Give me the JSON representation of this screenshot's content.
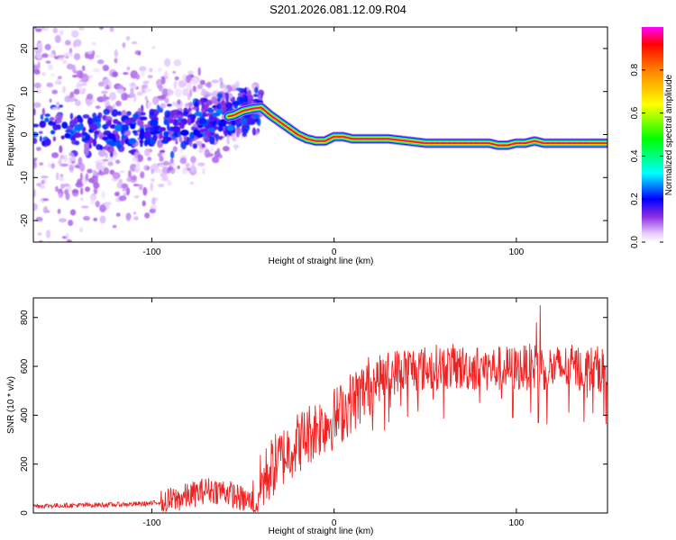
{
  "title": "S201.2026.081.12.09.R04",
  "chart_data": [
    {
      "type": "heatmap",
      "name": "spectrogram",
      "xlabel": "Height of straight line (km)",
      "ylabel": "Frequency (Hz)",
      "xlim": [
        -165,
        150
      ],
      "ylim": [
        -25,
        25
      ],
      "xticks": [
        -100,
        0,
        100
      ],
      "yticks": [
        -20,
        -10,
        0,
        10,
        20
      ],
      "colorbar": {
        "label": "Normalized spectral amplitude",
        "range": [
          0,
          1
        ],
        "ticks": [
          0.0,
          0.2,
          0.4,
          0.6,
          0.8
        ],
        "tick_labels": [
          "0.0",
          "0.2",
          "0.4",
          "0.6",
          "0.8"
        ],
        "stops": [
          {
            "v": 0.0,
            "color": "#ffffff"
          },
          {
            "v": 0.04,
            "color": "#e6ccff"
          },
          {
            "v": 0.12,
            "color": "#8a2be2"
          },
          {
            "v": 0.2,
            "color": "#0000ff"
          },
          {
            "v": 0.32,
            "color": "#00ffff"
          },
          {
            "v": 0.48,
            "color": "#00ff00"
          },
          {
            "v": 0.64,
            "color": "#ffff00"
          },
          {
            "v": 0.8,
            "color": "#ff8000"
          },
          {
            "v": 0.92,
            "color": "#ff0000"
          },
          {
            "v": 1.0,
            "color": "#ff00ff"
          }
        ]
      },
      "ridge": {
        "description": "Doppler frequency trace of peak amplitude",
        "x": [
          -85,
          -70,
          -60,
          -55,
          -50,
          -45,
          -40,
          -35,
          -30,
          -25,
          -20,
          -15,
          -10,
          -5,
          0,
          5,
          10,
          15,
          20,
          30,
          40,
          50,
          60,
          70,
          80,
          85,
          90,
          95,
          100,
          105,
          110,
          115,
          120,
          130,
          140,
          150
        ],
        "y": [
          2,
          3,
          4,
          4.5,
          5.5,
          6,
          6.3,
          4.5,
          3,
          1.5,
          0,
          -1,
          -1.5,
          -1.5,
          -0.5,
          -0.5,
          -1,
          -1,
          -1,
          -1,
          -1.5,
          -2,
          -2,
          -2,
          -2,
          -2,
          -2.5,
          -2.5,
          -2,
          -2,
          -1.5,
          -2,
          -2,
          -2,
          -2,
          -2
        ]
      }
    },
    {
      "type": "line",
      "name": "snr",
      "xlabel": "Height of straight line (km)",
      "ylabel": "SNR (10 * v/v)",
      "xlim": [
        -165,
        150
      ],
      "ylim": [
        0,
        880
      ],
      "xticks": [
        -100,
        0,
        100
      ],
      "yticks": [
        0,
        200,
        400,
        600,
        800
      ],
      "color": "#ee2222",
      "envelope": {
        "description": "approximate mean SNR trend",
        "x": [
          -165,
          -120,
          -100,
          -90,
          -80,
          -70,
          -60,
          -50,
          -45,
          -40,
          -35,
          -30,
          -25,
          -20,
          -15,
          -10,
          -5,
          0,
          5,
          10,
          15,
          20,
          25,
          30,
          35,
          40,
          50,
          60,
          70,
          80,
          90,
          100,
          110,
          120,
          130,
          140,
          150
        ],
        "y": [
          30,
          35,
          40,
          55,
          75,
          100,
          95,
          60,
          50,
          130,
          190,
          230,
          270,
          300,
          330,
          360,
          380,
          400,
          430,
          470,
          500,
          540,
          560,
          580,
          590,
          600,
          600,
          610,
          605,
          600,
          600,
          600,
          610,
          600,
          605,
          600,
          600
        ]
      },
      "spikes": [
        {
          "x": 113,
          "y": 850
        },
        {
          "x": 111,
          "y": 780
        },
        {
          "x": 98,
          "y": 390
        },
        {
          "x": 112,
          "y": 370
        },
        {
          "x": 148,
          "y": 400
        }
      ]
    }
  ]
}
